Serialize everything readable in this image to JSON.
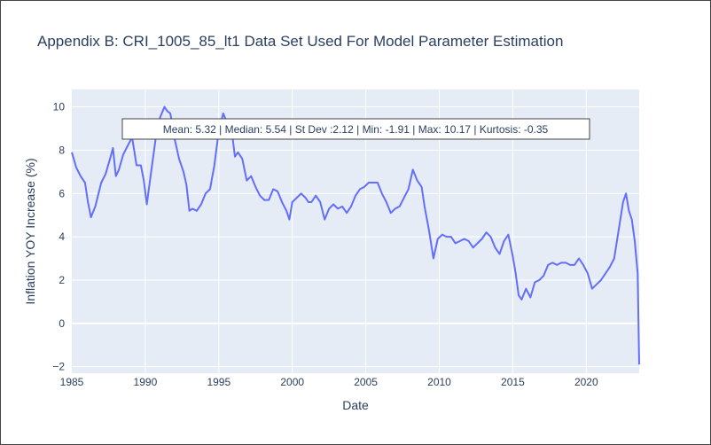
{
  "chart_data": {
    "type": "line",
    "title": "Appendix B: CRI_1005_85_lt1 Data Set Used For Model Parameter Estimation",
    "xlabel": "Date",
    "ylabel": "Inflation YOY Increase (%)",
    "xlim": [
      1985,
      2023.6
    ],
    "ylim": [
      -2.3,
      10.8
    ],
    "x_ticks": [
      1985,
      1990,
      1995,
      2000,
      2005,
      2010,
      2015,
      2020
    ],
    "x_tick_labels": [
      "1985",
      "1990",
      "1995",
      "2000",
      "2005",
      "2010",
      "2015",
      "2020"
    ],
    "y_ticks": [
      -2,
      0,
      2,
      4,
      6,
      8,
      10
    ],
    "y_tick_labels": [
      "−2",
      "0",
      "2",
      "4",
      "6",
      "8",
      "10"
    ],
    "grid": true,
    "annotation": "Mean: 5.32 | Median: 5.54 | St Dev :2.12 | Min: -1.91 | Max: 10.17 | Kurtosis: -0.35",
    "series": [
      {
        "color": "#636efa",
        "x": [
          1985.0,
          1985.3,
          1985.6,
          1985.9,
          1986.1,
          1986.3,
          1986.6,
          1987.0,
          1987.3,
          1987.6,
          1987.8,
          1988.0,
          1988.2,
          1988.5,
          1988.8,
          1989.1,
          1989.4,
          1989.7,
          1989.9,
          1990.1,
          1990.4,
          1990.7,
          1991.0,
          1991.3,
          1991.5,
          1991.7,
          1992.0,
          1992.3,
          1992.6,
          1992.8,
          1993.0,
          1993.2,
          1993.5,
          1993.8,
          1994.1,
          1994.4,
          1994.7,
          1995.0,
          1995.3,
          1995.6,
          1995.9,
          1996.1,
          1996.3,
          1996.6,
          1996.9,
          1997.2,
          1997.5,
          1997.8,
          1998.1,
          1998.4,
          1998.7,
          1999.0,
          1999.3,
          1999.6,
          1999.8,
          2000.0,
          2000.3,
          2000.6,
          2000.9,
          2001.1,
          2001.3,
          2001.6,
          2001.9,
          2002.2,
          2002.5,
          2002.8,
          2003.1,
          2003.4,
          2003.7,
          2004.0,
          2004.3,
          2004.6,
          2004.9,
          2005.2,
          2005.5,
          2005.8,
          2006.1,
          2006.4,
          2006.7,
          2007.0,
          2007.3,
          2007.6,
          2007.9,
          2008.2,
          2008.5,
          2008.8,
          2009.0,
          2009.3,
          2009.6,
          2009.9,
          2010.2,
          2010.5,
          2010.8,
          2011.1,
          2011.4,
          2011.7,
          2012.0,
          2012.3,
          2012.6,
          2012.9,
          2013.2,
          2013.5,
          2013.8,
          2014.1,
          2014.4,
          2014.7,
          2015.0,
          2015.2,
          2015.4,
          2015.6,
          2015.9,
          2016.2,
          2016.5,
          2016.8,
          2017.1,
          2017.4,
          2017.7,
          2018.0,
          2018.3,
          2018.6,
          2018.9,
          2019.2,
          2019.5,
          2019.8,
          2020.1,
          2020.4,
          2020.7,
          2021.0,
          2021.3,
          2021.6,
          2021.9,
          2022.2,
          2022.5,
          2022.7,
          2022.9,
          2023.1,
          2023.3,
          2023.5,
          2023.6
        ],
        "values": [
          7.9,
          7.2,
          6.8,
          6.5,
          5.6,
          4.9,
          5.4,
          6.5,
          6.9,
          7.6,
          8.1,
          6.8,
          7.1,
          7.8,
          8.2,
          8.6,
          7.3,
          7.3,
          6.6,
          5.5,
          7.0,
          8.5,
          9.5,
          10.0,
          9.8,
          9.7,
          8.5,
          7.6,
          7.0,
          6.4,
          5.2,
          5.3,
          5.2,
          5.5,
          6.0,
          6.2,
          7.3,
          8.9,
          9.7,
          9.2,
          8.8,
          7.7,
          7.9,
          7.6,
          6.6,
          6.8,
          6.3,
          5.9,
          5.7,
          5.7,
          6.2,
          6.1,
          5.6,
          5.2,
          4.8,
          5.6,
          5.8,
          6.0,
          5.8,
          5.6,
          5.6,
          5.9,
          5.6,
          4.8,
          5.3,
          5.5,
          5.3,
          5.4,
          5.1,
          5.4,
          5.9,
          6.2,
          6.3,
          6.5,
          6.5,
          6.5,
          6.0,
          5.6,
          5.1,
          5.3,
          5.4,
          5.8,
          6.2,
          7.1,
          6.6,
          6.3,
          5.4,
          4.3,
          3.0,
          3.9,
          4.1,
          4.0,
          4.0,
          3.7,
          3.8,
          3.9,
          3.8,
          3.5,
          3.7,
          3.9,
          4.2,
          4.0,
          3.5,
          3.2,
          3.8,
          4.1,
          3.1,
          2.3,
          1.3,
          1.1,
          1.6,
          1.2,
          1.9,
          2.0,
          2.2,
          2.7,
          2.8,
          2.7,
          2.8,
          2.8,
          2.7,
          2.7,
          3.0,
          2.7,
          2.3,
          1.6,
          1.8,
          2.0,
          2.3,
          2.6,
          3.0,
          4.3,
          5.6,
          6.0,
          5.2,
          4.8,
          3.8,
          2.3,
          -1.9
        ]
      }
    ]
  }
}
